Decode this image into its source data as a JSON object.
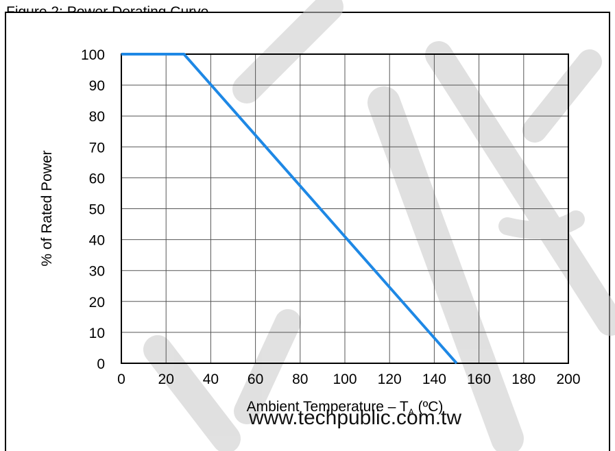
{
  "caption": "Figure 2: Power Derating Curve",
  "watermark": {
    "url_text": "www.techpublic.com.tw",
    "logo_color": "#c8c8c8"
  },
  "chart_data": {
    "type": "line",
    "title": "",
    "xlabel": "Ambient Temperature – T",
    "xlabel_subscript": "A",
    "xlabel_unit": " (ºC)",
    "ylabel": "% of Rated Power",
    "xlim": [
      0,
      200
    ],
    "ylim": [
      0,
      100
    ],
    "x_ticks": [
      0,
      20,
      40,
      60,
      80,
      100,
      120,
      140,
      160,
      180,
      200
    ],
    "y_ticks": [
      0,
      10,
      20,
      30,
      40,
      50,
      60,
      70,
      80,
      90,
      100
    ],
    "grid": true,
    "legend": "none",
    "series": [
      {
        "color": "#1e88e5",
        "x": [
          0,
          28,
          150
        ],
        "y": [
          100,
          100,
          0
        ]
      }
    ]
  }
}
